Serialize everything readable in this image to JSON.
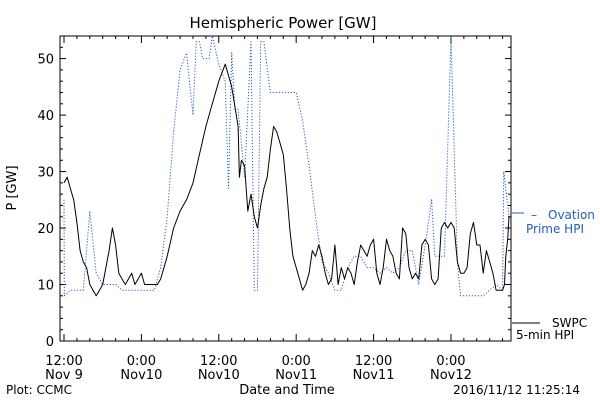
{
  "chart_data": {
    "type": "line",
    "title": "Hemispheric Power [GW]",
    "xlabel": "Date and Time",
    "ylabel": "P [GW]",
    "ylim": [
      0,
      54
    ],
    "xlim_hours": [
      0,
      69
    ],
    "grid": false,
    "yticks": [
      0,
      10,
      20,
      30,
      40,
      50
    ],
    "xticks": [
      {
        "h": 0,
        "line1": "12:00",
        "line2": "Nov 9"
      },
      {
        "h": 12,
        "line1": "0:00",
        "line2": "Nov10"
      },
      {
        "h": 24,
        "line1": "12:00",
        "line2": "Nov10"
      },
      {
        "h": 36,
        "line1": "0:00",
        "line2": "Nov11"
      },
      {
        "h": 48,
        "line1": "12:00",
        "line2": "Nov11"
      },
      {
        "h": 60,
        "line1": "0:00",
        "line2": "Nov12"
      }
    ],
    "footer": {
      "left": "Plot: CCMC",
      "right": "2016/11/12 11:25:14"
    },
    "series": [
      {
        "name": "Ovation Prime HPI",
        "legend": [
          "Ovation",
          "Prime HPI"
        ],
        "legend_dash": "– ",
        "color": "#1f5fb4",
        "style": "dotted",
        "points": [
          [
            0,
            25
          ],
          [
            0.05,
            8
          ],
          [
            1,
            9
          ],
          [
            2,
            9
          ],
          [
            3,
            9
          ],
          [
            4,
            23
          ],
          [
            5,
            12
          ],
          [
            6,
            10
          ],
          [
            7,
            10
          ],
          [
            8,
            10
          ],
          [
            9,
            9
          ],
          [
            10,
            9
          ],
          [
            11,
            9
          ],
          [
            12,
            9
          ],
          [
            13,
            9
          ],
          [
            14,
            9
          ],
          [
            15,
            13
          ],
          [
            16,
            22
          ],
          [
            17,
            37
          ],
          [
            18,
            48
          ],
          [
            19,
            51
          ],
          [
            20,
            40
          ],
          [
            20.5,
            53
          ],
          [
            21,
            53
          ],
          [
            21.5,
            50
          ],
          [
            22,
            50
          ],
          [
            22.5,
            50
          ],
          [
            23,
            54
          ],
          [
            24,
            49
          ],
          [
            25,
            46
          ],
          [
            25.5,
            27
          ],
          [
            26,
            51
          ],
          [
            26.5,
            41
          ],
          [
            27,
            41
          ],
          [
            27.5,
            35
          ],
          [
            28,
            29
          ],
          [
            29,
            53
          ],
          [
            29.5,
            9
          ],
          [
            30,
            9
          ],
          [
            30.5,
            53
          ],
          [
            31,
            53
          ],
          [
            32,
            44
          ],
          [
            33,
            44
          ],
          [
            34,
            44
          ],
          [
            35,
            44
          ],
          [
            36,
            44
          ],
          [
            37,
            39
          ],
          [
            38,
            31
          ],
          [
            39,
            22
          ],
          [
            40,
            14
          ],
          [
            41,
            12
          ],
          [
            42,
            9
          ],
          [
            43,
            9
          ],
          [
            44,
            13
          ],
          [
            45,
            15
          ],
          [
            46,
            15
          ],
          [
            47,
            13
          ],
          [
            48,
            13
          ],
          [
            49,
            12
          ],
          [
            50,
            13
          ],
          [
            51,
            12
          ],
          [
            52,
            13
          ],
          [
            53,
            16
          ],
          [
            54,
            16
          ],
          [
            55,
            10
          ],
          [
            56,
            17
          ],
          [
            57,
            25
          ],
          [
            57.5,
            15
          ],
          [
            58,
            15
          ],
          [
            58.5,
            15
          ],
          [
            59,
            15
          ],
          [
            60,
            54
          ],
          [
            61,
            14
          ],
          [
            61.5,
            8
          ],
          [
            62,
            8
          ],
          [
            63,
            8
          ],
          [
            64,
            8
          ],
          [
            65,
            8
          ],
          [
            66,
            9
          ],
          [
            67,
            10
          ],
          [
            68,
            9
          ],
          [
            68.2,
            30
          ],
          [
            69,
            22
          ]
        ]
      },
      {
        "name": "SWPC 5-min HPI",
        "legend": [
          "SWPC",
          "5-min HPI"
        ],
        "legend_dash": "",
        "color": "#000000",
        "style": "solid",
        "points": [
          [
            0,
            28
          ],
          [
            0.5,
            29
          ],
          [
            1,
            27
          ],
          [
            1.5,
            25
          ],
          [
            2,
            21
          ],
          [
            2.5,
            16
          ],
          [
            3,
            14
          ],
          [
            3.5,
            13
          ],
          [
            4,
            10
          ],
          [
            4.5,
            9
          ],
          [
            5,
            8
          ],
          [
            5.5,
            9
          ],
          [
            6,
            10
          ],
          [
            6.5,
            13
          ],
          [
            7,
            16
          ],
          [
            7.5,
            20
          ],
          [
            8,
            17
          ],
          [
            8.5,
            12
          ],
          [
            9,
            11
          ],
          [
            9.5,
            10
          ],
          [
            10,
            11
          ],
          [
            10.5,
            12
          ],
          [
            11,
            10
          ],
          [
            11.5,
            11
          ],
          [
            12,
            12
          ],
          [
            12.5,
            10
          ],
          [
            13,
            10
          ],
          [
            13.5,
            10
          ],
          [
            14,
            10
          ],
          [
            14.5,
            10
          ],
          [
            15,
            11
          ],
          [
            16,
            15
          ],
          [
            17,
            20
          ],
          [
            18,
            23
          ],
          [
            19,
            25
          ],
          [
            20,
            28
          ],
          [
            21,
            33
          ],
          [
            22,
            38
          ],
          [
            23,
            42
          ],
          [
            24,
            46
          ],
          [
            25,
            49
          ],
          [
            25.5,
            47
          ],
          [
            26,
            45
          ],
          [
            27,
            38
          ],
          [
            27.2,
            29
          ],
          [
            27.5,
            32
          ],
          [
            28,
            31
          ],
          [
            28.5,
            23
          ],
          [
            29,
            26
          ],
          [
            29.5,
            22
          ],
          [
            30,
            20
          ],
          [
            30.5,
            24
          ],
          [
            31,
            27
          ],
          [
            31.5,
            29
          ],
          [
            32,
            34
          ],
          [
            32.5,
            38
          ],
          [
            33,
            37
          ],
          [
            33.5,
            35
          ],
          [
            34,
            33
          ],
          [
            34.5,
            27
          ],
          [
            35,
            20
          ],
          [
            35.5,
            15
          ],
          [
            36,
            13
          ],
          [
            36.5,
            11
          ],
          [
            37,
            9
          ],
          [
            37.5,
            10
          ],
          [
            38,
            12
          ],
          [
            38.5,
            16
          ],
          [
            39,
            15
          ],
          [
            39.5,
            17
          ],
          [
            40,
            15
          ],
          [
            40.5,
            12
          ],
          [
            41,
            10
          ],
          [
            41.5,
            11
          ],
          [
            42,
            17
          ],
          [
            42.5,
            10
          ],
          [
            43,
            13
          ],
          [
            43.5,
            11
          ],
          [
            44,
            13
          ],
          [
            44.5,
            12
          ],
          [
            45,
            10
          ],
          [
            45.5,
            14
          ],
          [
            46,
            17
          ],
          [
            46.5,
            16
          ],
          [
            47,
            15
          ],
          [
            47.5,
            17
          ],
          [
            48,
            18
          ],
          [
            48.5,
            12
          ],
          [
            49,
            10
          ],
          [
            49.5,
            13
          ],
          [
            50,
            18
          ],
          [
            50.5,
            16
          ],
          [
            51,
            15
          ],
          [
            51.5,
            12
          ],
          [
            52,
            11
          ],
          [
            52.5,
            20
          ],
          [
            53,
            19
          ],
          [
            53.5,
            13
          ],
          [
            54,
            11
          ],
          [
            54.5,
            12
          ],
          [
            55,
            11
          ],
          [
            55.5,
            17
          ],
          [
            56,
            18
          ],
          [
            56.5,
            17
          ],
          [
            57,
            11
          ],
          [
            57.5,
            10
          ],
          [
            58,
            11
          ],
          [
            58.5,
            20
          ],
          [
            59,
            21
          ],
          [
            59.5,
            20
          ],
          [
            60,
            21
          ],
          [
            60.5,
            20
          ],
          [
            61,
            14
          ],
          [
            61.5,
            12
          ],
          [
            62,
            12
          ],
          [
            62.5,
            13
          ],
          [
            63,
            19
          ],
          [
            63.5,
            21
          ],
          [
            64,
            17
          ],
          [
            64.5,
            17
          ],
          [
            65,
            12
          ],
          [
            65.5,
            16
          ],
          [
            66,
            14
          ],
          [
            66.5,
            12
          ],
          [
            67,
            9
          ],
          [
            67.5,
            9
          ],
          [
            68,
            9
          ],
          [
            68.3,
            10
          ],
          [
            68.5,
            15
          ],
          [
            68.8,
            18
          ],
          [
            69,
            22
          ]
        ]
      }
    ]
  }
}
